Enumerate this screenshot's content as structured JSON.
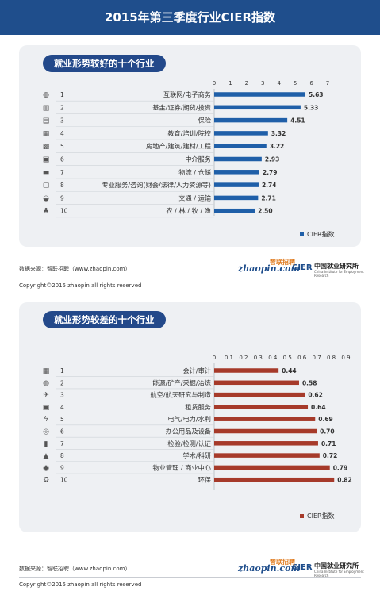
{
  "title": "2015年第三季度行业CIER指数",
  "source_text": "数据来源：智联招聘（www.zhaopin.com）",
  "copyright": "Copyright©2015 zhaopin all rights reserved",
  "logos": {
    "zhaopin": "zhaopin.com",
    "zhaopin_cn": "智联招聘",
    "cier": "CIER",
    "cier_cn": "中国就业研究所",
    "cier_en": "China Institute for Employment Research"
  },
  "colors": {
    "top_bar": "#1f5fa8",
    "bottom_bar": "#a63a2a",
    "header": "#1f4e8c",
    "pill": "#23498a"
  },
  "chart_data": [
    {
      "type": "bar",
      "orientation": "horizontal",
      "title": "就业形势较好的十个行业",
      "ranks": [
        1,
        2,
        3,
        4,
        5,
        6,
        7,
        8,
        9,
        10
      ],
      "icons": [
        "globe-icon",
        "chart-icon",
        "shield-icon",
        "school-icon",
        "building-icon",
        "handshake-icon",
        "truck-icon",
        "briefcase-icon",
        "car-icon",
        "plant-icon"
      ],
      "categories": [
        "互联网/电子商务",
        "基金/证券/期货/投资",
        "保险",
        "教育/培训/院校",
        "房地产/建筑/建材/工程",
        "中介服务",
        "物流 / 仓储",
        "专业服务/咨询(财会/法律/人力资源等)",
        "交通 / 运输",
        "农 / 林 / 牧 / 渔"
      ],
      "values": [
        5.63,
        5.33,
        4.51,
        3.32,
        3.22,
        2.93,
        2.79,
        2.74,
        2.71,
        2.5
      ],
      "xlim": [
        0,
        7
      ],
      "ticks": [
        "0",
        "1",
        "2",
        "3",
        "4",
        "5",
        "6",
        "7"
      ],
      "legend": "CIER指数",
      "legend_position": "bottom-right",
      "color": "#1f5fa8"
    },
    {
      "type": "bar",
      "orientation": "horizontal",
      "title": "就业形势较差的十个行业",
      "ranks": [
        1,
        2,
        3,
        4,
        5,
        6,
        7,
        8,
        9,
        10
      ],
      "icons": [
        "calculator-icon",
        "mining-icon",
        "plane-icon",
        "lease-icon",
        "power-icon",
        "clip-icon",
        "test-icon",
        "flask-icon",
        "mall-icon",
        "recycle-icon"
      ],
      "categories": [
        "会计/审计",
        "能源/矿产/采掘/冶炼",
        "航空/航天研究与制造",
        "租赁服务",
        "电气/电力/水利",
        "办公用品及设备",
        "检验/检测/认证",
        "学术/科研",
        "物业管理 / 商业中心",
        "环保"
      ],
      "values": [
        0.44,
        0.58,
        0.62,
        0.64,
        0.69,
        0.7,
        0.71,
        0.72,
        0.79,
        0.82
      ],
      "xlim": [
        0,
        0.9
      ],
      "ticks": [
        "0",
        "0.1",
        "0.2",
        "0.3",
        "0.4",
        "0.5",
        "0.6",
        "0.7",
        "0.8",
        "0.9"
      ],
      "legend": "CIER指数",
      "legend_position": "bottom-right",
      "color": "#a63a2a"
    }
  ]
}
